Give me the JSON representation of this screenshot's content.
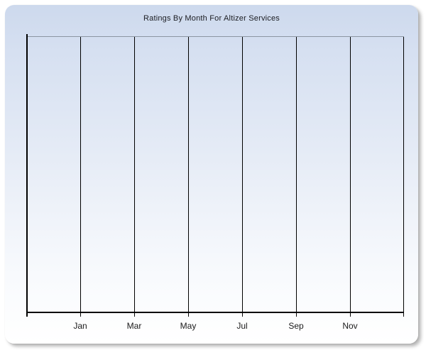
{
  "window": {
    "background_color": "#ffffff"
  },
  "chart": {
    "title": "Ratings By Month For Altizer Services",
    "title_color": "#1b1c22",
    "panel": {
      "gradient_top_color": "#cdd9ed",
      "gradient_bottom_color": "#ffffff",
      "shadow_color": "#696969"
    },
    "plot": {
      "top_border_color": "#8c96a2",
      "gridline_color": "#000000",
      "axis_line_color": "#000000",
      "tick_label_color": "#1a1a1a",
      "vertical_gridline_count": 8
    }
  },
  "chart_data": {
    "type": "line",
    "title": "Ratings By Month For Altizer Services",
    "x_tick_labels": [
      "Jan",
      "Mar",
      "May",
      "Jul",
      "Sep",
      "Nov"
    ],
    "y_tick_labels": [],
    "xlabel": "",
    "ylabel": "",
    "series": [],
    "plot_empty": true,
    "grid": "vertical-only",
    "legend": "none"
  }
}
